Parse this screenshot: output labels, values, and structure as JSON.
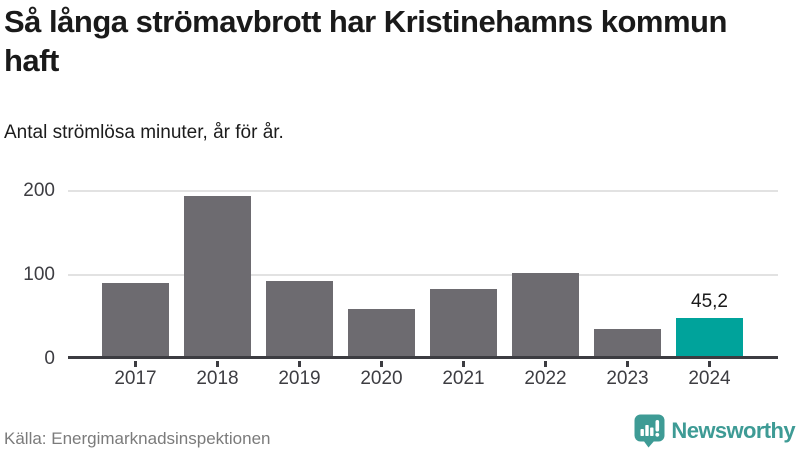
{
  "header": {
    "title": "Så långa strömavbrott har Kristinehamns kommun\nhaft",
    "subtitle": "Antal strömlösa minuter, år för år."
  },
  "chart_data": {
    "type": "bar",
    "title": "Så långa strömavbrott har Kristinehamns kommun haft",
    "subtitle": "Antal strömlösa minuter, år för år.",
    "categories": [
      "2017",
      "2018",
      "2019",
      "2020",
      "2021",
      "2022",
      "2023",
      "2024"
    ],
    "values": [
      87,
      190,
      89,
      56,
      80,
      98,
      32,
      45.2
    ],
    "value_labels": [
      null,
      null,
      null,
      null,
      null,
      null,
      null,
      "45,2"
    ],
    "highlight_index": 7,
    "xlabel": "",
    "ylabel": "",
    "yticks": [
      "0",
      "100",
      "200"
    ],
    "ylim": [
      0,
      200
    ],
    "grid": true,
    "legend": false,
    "bar_color": "#6d6b70",
    "highlight_color": "#00a39b"
  },
  "footer": {
    "source": "Källa: Energimarknadsinspektionen",
    "brand": "Newsworthy"
  },
  "colors": {
    "accent_teal": "#00a39b",
    "logo_teal": "#3e9b95",
    "bar_gray": "#6d6b70",
    "axis": "#3c3c41",
    "grid": "#e2e2e2",
    "text": "#1a1a1a",
    "muted": "#7b7b7b",
    "white": "#ffffff"
  }
}
